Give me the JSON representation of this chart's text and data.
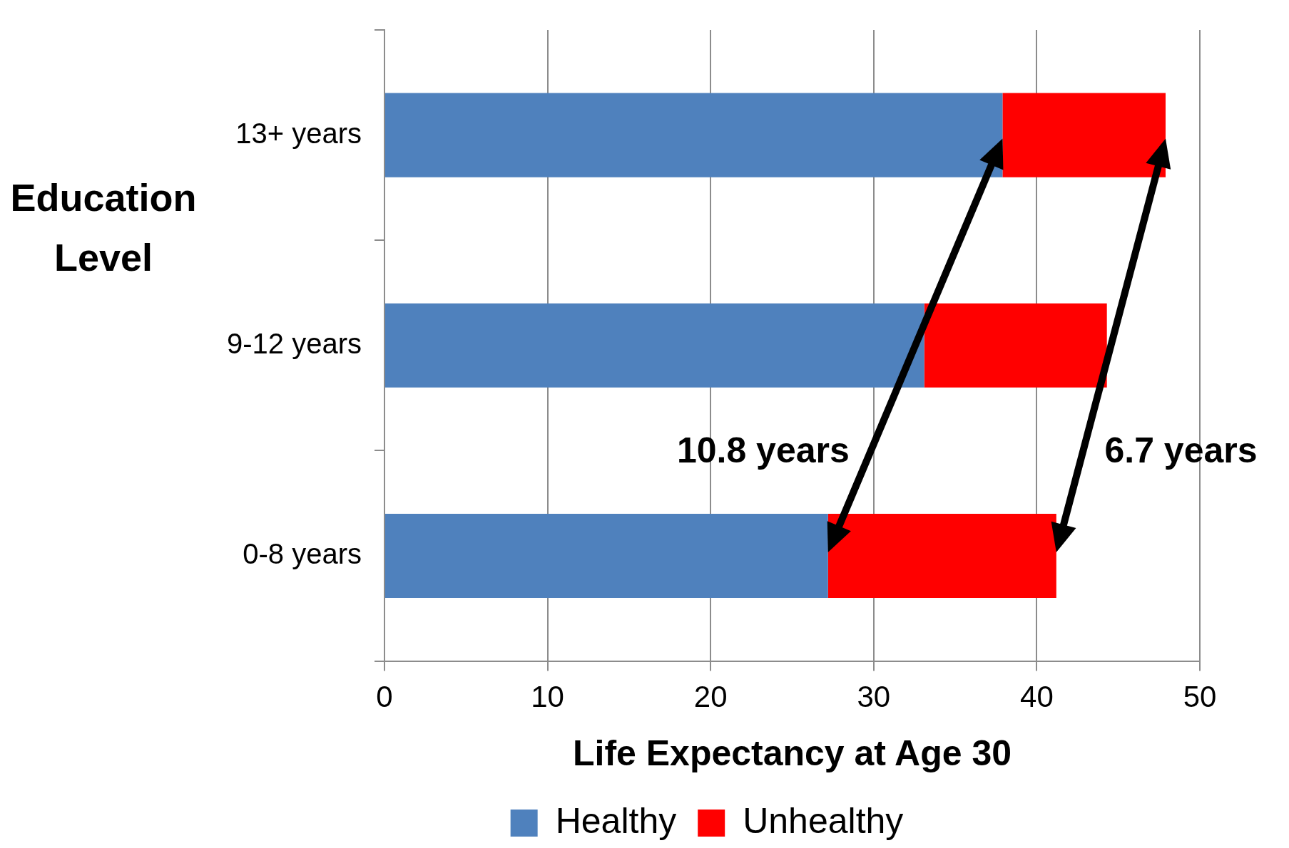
{
  "chart_data": {
    "type": "bar",
    "orientation": "horizontal",
    "stacked": true,
    "categories": [
      "13+ years",
      "9-12 years",
      "0-8 years"
    ],
    "series": [
      {
        "name": "Healthy",
        "color": "#4f81bd",
        "values": [
          37.9,
          33.1,
          27.2
        ]
      },
      {
        "name": "Unhealthy",
        "color": "#ff0000",
        "values": [
          10.0,
          11.2,
          14.0
        ]
      }
    ],
    "xlim": [
      0,
      50
    ],
    "xticks": [
      0,
      10,
      20,
      30,
      40,
      50
    ],
    "xlabel": "Life Expectancy at Age 30",
    "ylabel": "Education Level",
    "grid": "x",
    "legend": "bottom",
    "annotations": [
      "10.8 years",
      "6.7 years"
    ]
  }
}
